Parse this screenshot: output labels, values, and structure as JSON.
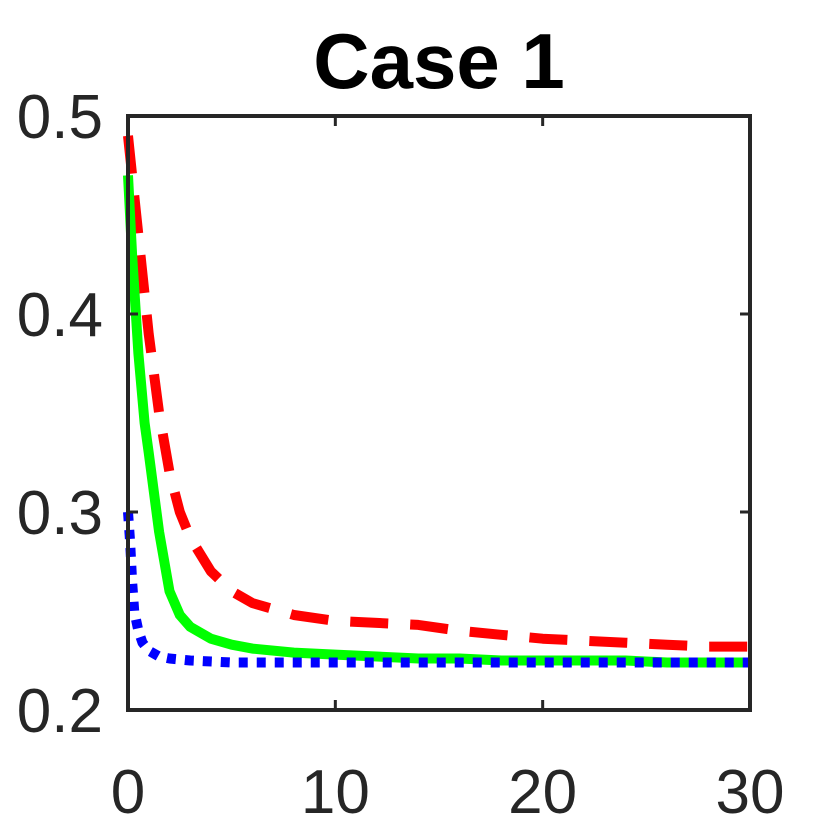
{
  "chart_data": {
    "type": "line",
    "title": "Case 1",
    "xlabel": "",
    "ylabel": "",
    "xlim": [
      0,
      30
    ],
    "ylim": [
      0.2,
      0.5
    ],
    "xticks": [
      0,
      10,
      20,
      30
    ],
    "yticks": [
      0.2,
      0.3,
      0.4,
      0.5
    ],
    "xtick_labels": [
      "0",
      "10",
      "20",
      "30"
    ],
    "ytick_labels": [
      "0.2",
      "0.3",
      "0.4",
      "0.5"
    ],
    "grid": false,
    "series": [
      {
        "style": "dashed",
        "color": "#ff0000",
        "x": [
          0,
          0.3,
          0.7,
          1,
          1.5,
          2,
          2.5,
          3,
          4,
          5,
          6,
          8,
          10,
          12,
          14,
          16,
          18,
          20,
          22,
          24,
          26,
          28,
          30
        ],
        "y": [
          0.49,
          0.46,
          0.42,
          0.39,
          0.35,
          0.32,
          0.3,
          0.287,
          0.27,
          0.26,
          0.254,
          0.248,
          0.245,
          0.244,
          0.243,
          0.24,
          0.238,
          0.236,
          0.235,
          0.234,
          0.233,
          0.232,
          0.232
        ]
      },
      {
        "style": "solid",
        "color": "#00ff00",
        "x": [
          0,
          0.2,
          0.5,
          0.8,
          1,
          1.5,
          2,
          2.5,
          3,
          4,
          5,
          6,
          8,
          10,
          12,
          14,
          16,
          18,
          20,
          22,
          24,
          26,
          28,
          30
        ],
        "y": [
          0.47,
          0.43,
          0.38,
          0.345,
          0.33,
          0.29,
          0.26,
          0.248,
          0.242,
          0.236,
          0.233,
          0.231,
          0.229,
          0.228,
          0.227,
          0.226,
          0.226,
          0.225,
          0.225,
          0.225,
          0.225,
          0.224,
          0.224,
          0.224
        ]
      },
      {
        "style": "dotted",
        "color": "#0000ff",
        "x": [
          0,
          0.1,
          0.2,
          0.3,
          0.5,
          0.7,
          1,
          1.5,
          2,
          3,
          5,
          10,
          15,
          20,
          25,
          30
        ],
        "y": [
          0.3,
          0.285,
          0.265,
          0.25,
          0.24,
          0.234,
          0.23,
          0.227,
          0.226,
          0.225,
          0.224,
          0.224,
          0.224,
          0.224,
          0.224,
          0.224
        ]
      }
    ]
  }
}
